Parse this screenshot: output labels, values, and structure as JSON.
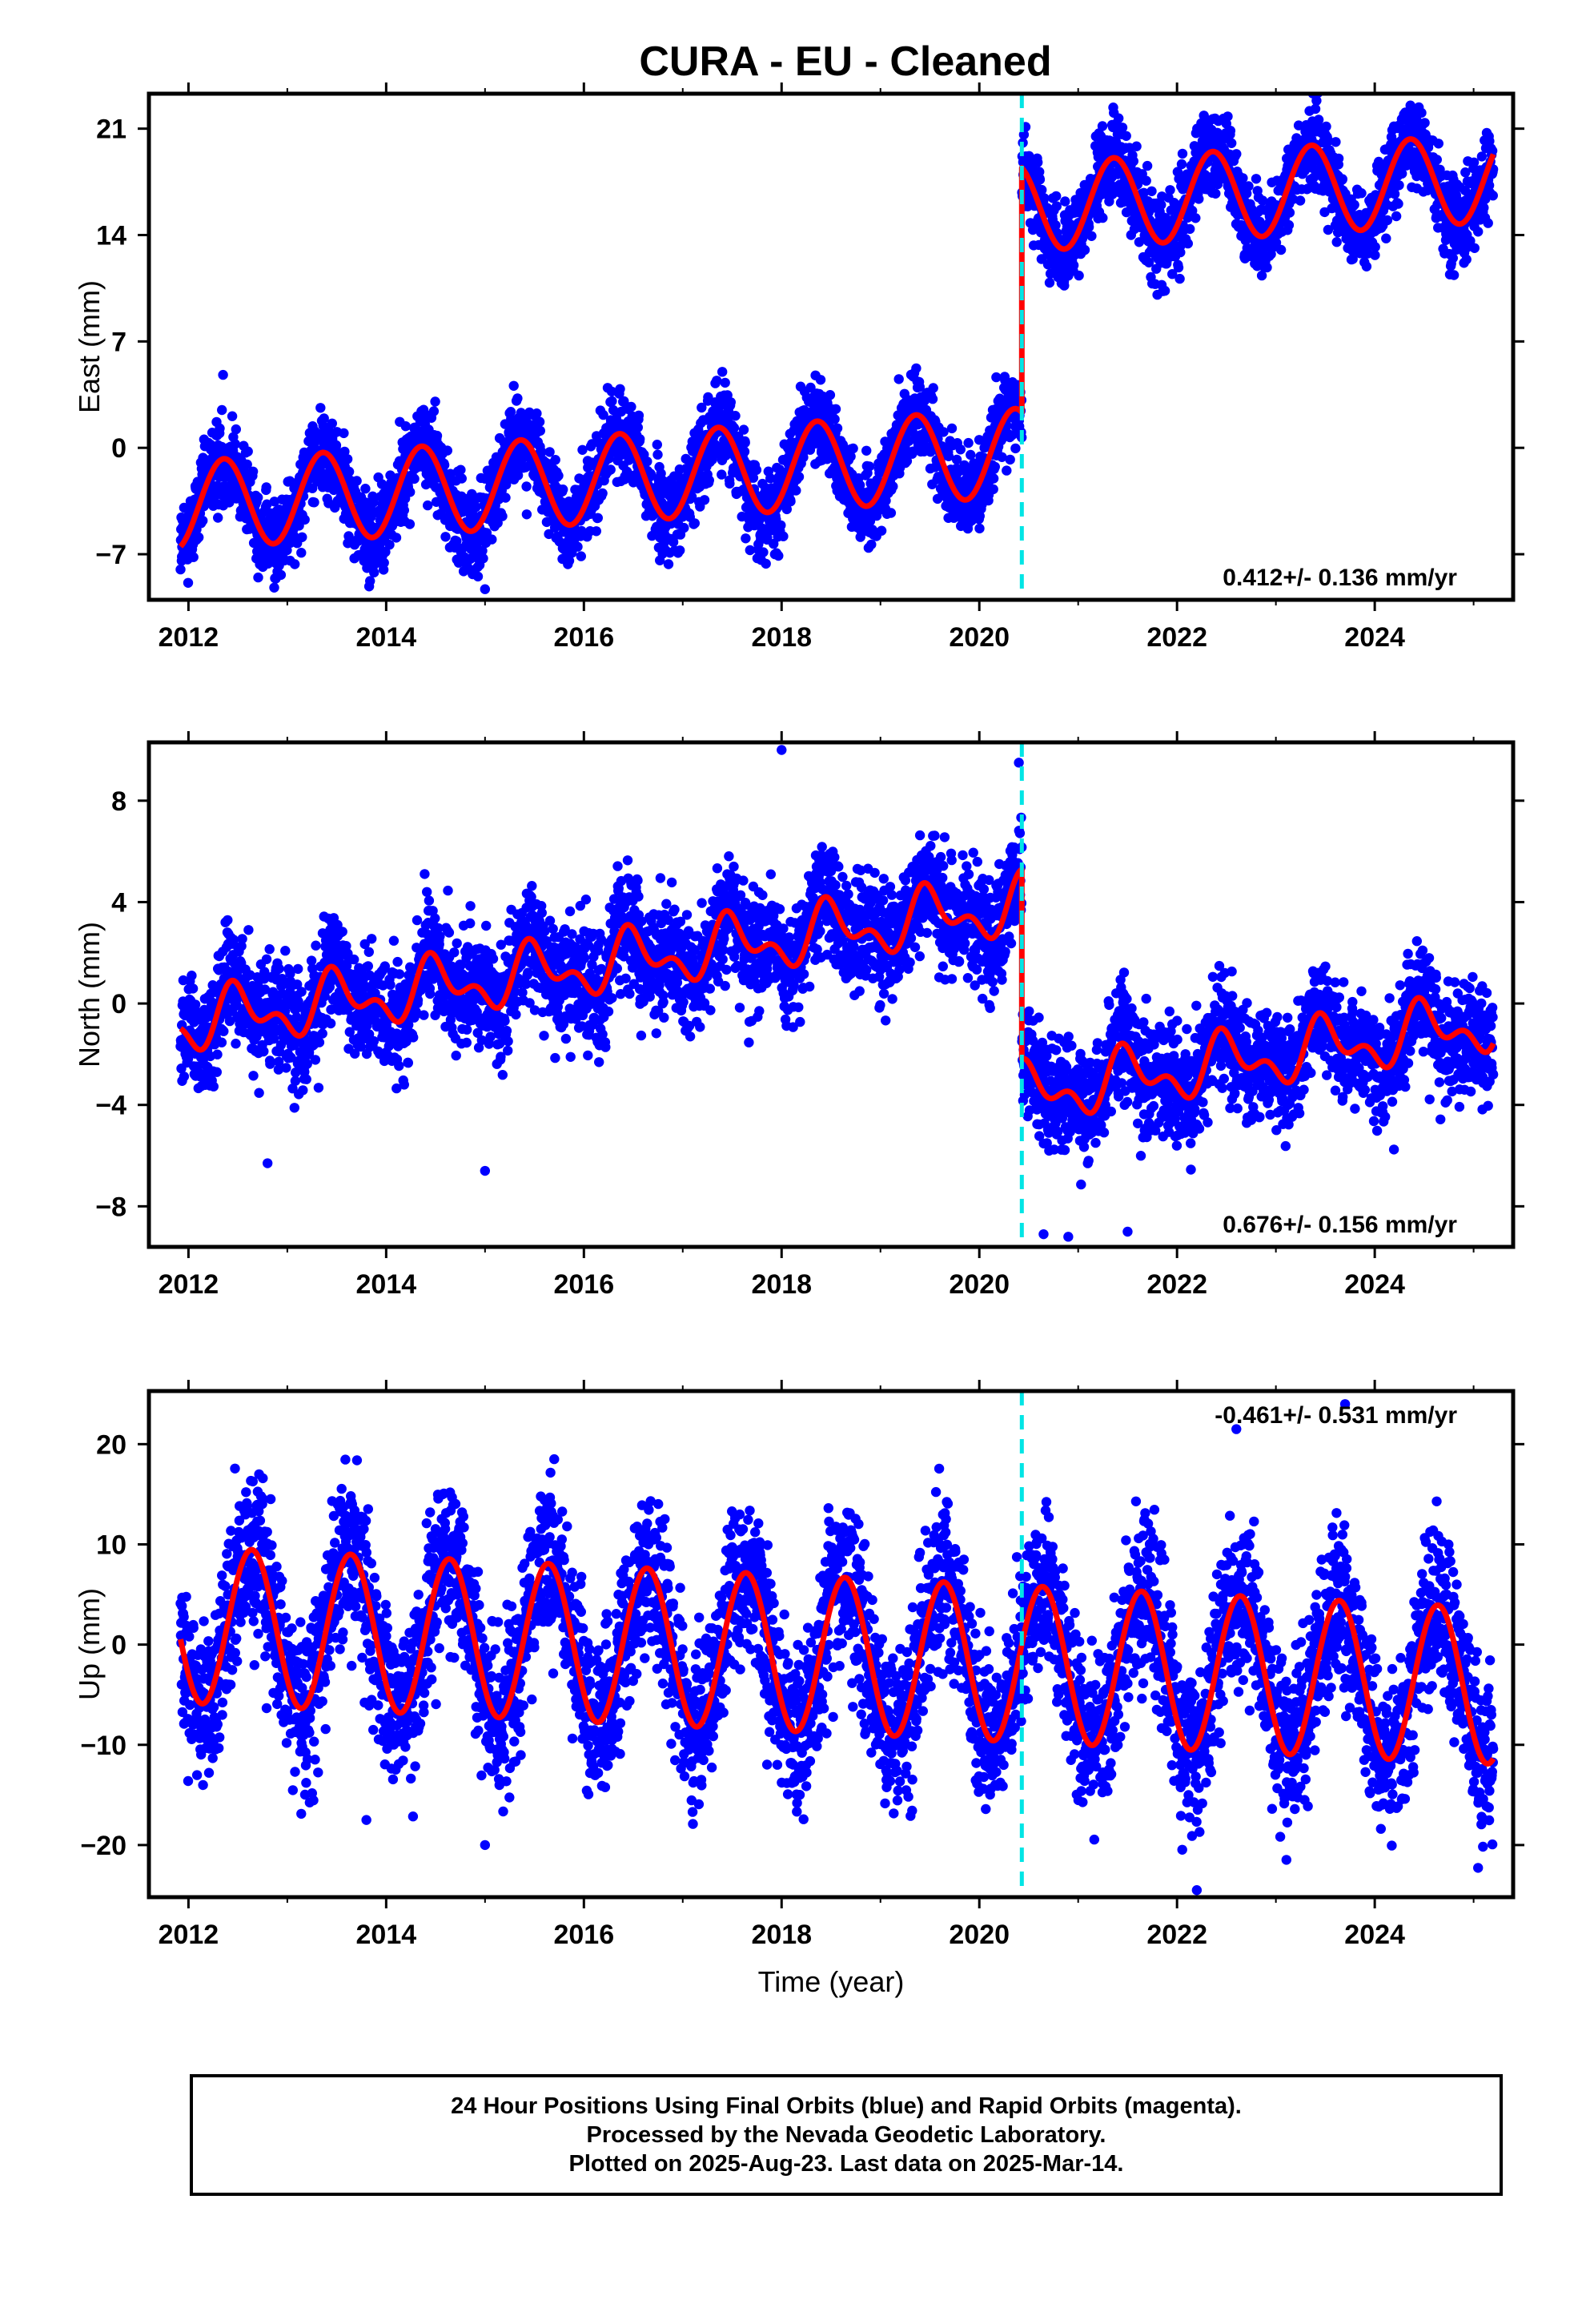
{
  "title": "CURA  - EU - Cleaned",
  "footer": {
    "line1": "24 Hour Positions Using Final Orbits (blue) and Rapid Orbits (magenta).",
    "line2": "Processed by the Nevada Geodetic Laboratory.",
    "line3": "Plotted on 2025-Aug-23. Last data on 2025-Mar-14."
  },
  "colors": {
    "final_orbits": "#0000ff",
    "model_fit": "#ff0000",
    "offset_marker": "#00e5e5",
    "axes": "#000000"
  },
  "chart_data": [
    {
      "type": "scatter",
      "panel": "east",
      "title": "",
      "xlabel": "",
      "ylabel": "East (mm)",
      "xlim": [
        2011.6,
        2025.4
      ],
      "ylim": [
        -10,
        23.3
      ],
      "xticks": [
        2012,
        2014,
        2016,
        2018,
        2020,
        2022,
        2024
      ],
      "yticks": [
        -7,
        0,
        7,
        14,
        21
      ],
      "rate_label": "0.412+/- 0.136 mm/yr",
      "rate_position": "bottom-right",
      "offset_epoch": 2020.43,
      "series": [
        {
          "kind": "model",
          "segments": [
            {
              "x_range": [
                2011.92,
                2020.43
              ],
              "base_at_start": -3.8,
              "trend": 0.412,
              "annual_amplitude": 2.9,
              "annual_peak_time": 0.36
            },
            {
              "x_range": [
                2020.43,
                2025.2
              ],
              "base_at_start": 15.8,
              "trend": 0.412,
              "annual_amplitude": 2.9,
              "annual_peak_time": 0.36
            }
          ],
          "noise_sd": 1.4
        }
      ],
      "notable_points": [
        {
          "x": 2015.0,
          "y": -9.3
        },
        {
          "x": 2012.35,
          "y": 4.8
        },
        {
          "x": 2017.4,
          "y": 5.0
        },
        {
          "x": 2023.4,
          "y": 22.3
        }
      ]
    },
    {
      "type": "scatter",
      "panel": "north",
      "title": "",
      "xlabel": "",
      "ylabel": "North (mm)",
      "xlim": [
        2011.6,
        2025.4
      ],
      "ylim": [
        -9.6,
        10.3
      ],
      "xticks": [
        2012,
        2014,
        2016,
        2018,
        2020,
        2022,
        2024
      ],
      "yticks": [
        -8,
        -4,
        0,
        4,
        8
      ],
      "rate_label": "0.676+/- 0.156 mm/yr",
      "rate_position": "bottom-right",
      "offset_epoch": 2020.43,
      "series": [
        {
          "kind": "model",
          "segments": [
            {
              "x_range": [
                2011.92,
                2020.43
              ],
              "base_at_start": -0.8,
              "trend": 0.55,
              "annual_amplitude": 0.9,
              "annual_peak_time": 0.5,
              "semiannual_amplitude": 0.6
            },
            {
              "x_range": [
                2020.43,
                2025.2
              ],
              "base_at_start": -3.6,
              "trend": 0.6,
              "annual_amplitude": 0.9,
              "annual_peak_time": 0.5,
              "semiannual_amplitude": 0.6
            }
          ],
          "noise_sd": 1.1
        }
      ],
      "notable_points": [
        {
          "x": 2018.0,
          "y": 10.0
        },
        {
          "x": 2020.4,
          "y": 9.5
        },
        {
          "x": 2015.0,
          "y": -6.6
        },
        {
          "x": 2012.8,
          "y": -6.3
        },
        {
          "x": 2020.65,
          "y": -9.1
        },
        {
          "x": 2021.5,
          "y": -9.0
        },
        {
          "x": 2020.9,
          "y": -9.2
        }
      ]
    },
    {
      "type": "scatter",
      "panel": "up",
      "title": "",
      "xlabel": "Time (year)",
      "ylabel": "Up (mm)",
      "xlim": [
        2011.6,
        2025.4
      ],
      "ylim": [
        -25.2,
        25.3
      ],
      "xticks": [
        2012,
        2014,
        2016,
        2018,
        2020,
        2022,
        2024
      ],
      "yticks": [
        -20,
        -10,
        0,
        10,
        20
      ],
      "rate_label": "-0.461+/- 0.531 mm/yr",
      "rate_position": "top-right",
      "offset_epoch": 2020.43,
      "series": [
        {
          "kind": "model",
          "segments": [
            {
              "x_range": [
                2011.92,
                2025.2
              ],
              "base_at_start": 2.0,
              "trend": -0.461,
              "annual_amplitude": 7.8,
              "annual_peak_time": 0.64
            }
          ],
          "noise_sd": 4.0
        }
      ],
      "notable_points": [
        {
          "x": 2022.2,
          "y": -24.5
        },
        {
          "x": 2015.0,
          "y": -20.0
        },
        {
          "x": 2013.8,
          "y": -17.5
        },
        {
          "x": 2022.6,
          "y": 21.5
        },
        {
          "x": 2023.7,
          "y": 24.0
        },
        {
          "x": 2015.7,
          "y": 18.5
        }
      ]
    }
  ]
}
